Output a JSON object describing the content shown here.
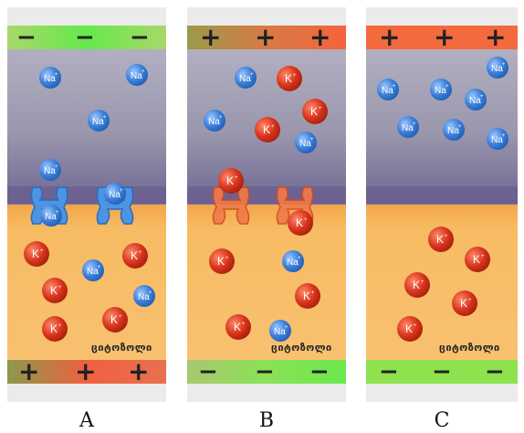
{
  "panels": [
    {
      "caption": "A",
      "top_charge": "−",
      "bottom_charge": "+",
      "cytosol_label": "ციტოზოლი",
      "colors": {
        "top_strip": "#9be25a",
        "bottom_strip": "#d8643c",
        "channel": "#4a93e0"
      }
    },
    {
      "caption": "B",
      "top_charge": "+",
      "bottom_charge": "−",
      "cytosol_label": "ციტოზოლი",
      "colors": {
        "top_strip": "#f0683c",
        "bottom_strip": "#9be25a",
        "channel": "#f06a3a"
      }
    },
    {
      "caption": "C",
      "top_charge": "+",
      "bottom_charge": "−",
      "cytosol_label": "ციტოზოლი",
      "colors": {
        "top_strip": "#f06a3c",
        "bottom_strip": "#8fe04e",
        "channel": ""
      }
    }
  ],
  "ions": {
    "na_label": "Na",
    "k_label": "K",
    "charge_mark": "+",
    "na_color": "#3a7ed8",
    "k_color": "#d8341c"
  },
  "colors": {
    "extracellular": "#8d8aa3",
    "membrane": "#6a5f8c",
    "cytosol": "#f6b456"
  }
}
